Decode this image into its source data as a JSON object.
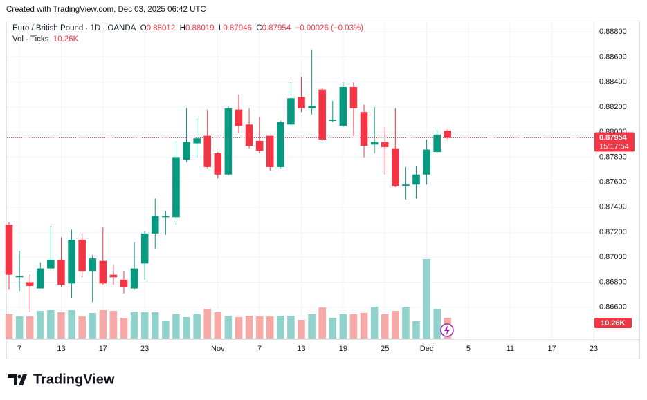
{
  "watermark": "Created with TradingView.com, Dec 03, 2025 06:42 UTC",
  "logo": "TradingView",
  "chart_data": {
    "type": "candlestick",
    "title": "Euro / British Pound · 1D · OANDA",
    "ohlc_letters": [
      "O",
      "H",
      "L",
      "C"
    ],
    "change_label": "−0.00026 (−0.03%)",
    "volume_title": "Vol · Ticks",
    "last_volume_label": "10.26K",
    "countdown": "15:17:54",
    "up_color": "#089981",
    "down_color": "#f23645",
    "volume_up_color": "#92d2cc",
    "volume_down_color": "#f7a9a7",
    "grid": true,
    "xlim": [
      -0.2,
      56
    ],
    "xticks": [
      {
        "value": 1,
        "label": "7"
      },
      {
        "value": 5,
        "label": "13"
      },
      {
        "value": 9,
        "label": "17"
      },
      {
        "value": 13,
        "label": "23"
      },
      {
        "value": 20,
        "label": "Nov"
      },
      {
        "value": 24,
        "label": "7"
      },
      {
        "value": 28,
        "label": "13"
      },
      {
        "value": 32,
        "label": "19"
      },
      {
        "value": 36,
        "label": "25"
      },
      {
        "value": 40,
        "label": "Dec"
      },
      {
        "value": 44,
        "label": "5"
      },
      {
        "value": 48,
        "label": "11"
      },
      {
        "value": 52,
        "label": "17"
      },
      {
        "value": 56,
        "label": "23"
      }
    ],
    "ylim": [
      0.8635,
      0.8889
    ],
    "yticks": [
      {
        "value": 0.866,
        "label": "0.86600"
      },
      {
        "value": 0.868,
        "label": "0.86800"
      },
      {
        "value": 0.87,
        "label": "0.87000"
      },
      {
        "value": 0.872,
        "label": "0.87200"
      },
      {
        "value": 0.874,
        "label": "0.87400"
      },
      {
        "value": 0.876,
        "label": "0.87600"
      },
      {
        "value": 0.878,
        "label": "0.87800"
      },
      {
        "value": 0.88,
        "label": "0.88000"
      },
      {
        "value": 0.882,
        "label": "0.88200"
      },
      {
        "value": 0.884,
        "label": "0.88400"
      },
      {
        "value": 0.886,
        "label": "0.88600"
      },
      {
        "value": 0.888,
        "label": "0.88800"
      }
    ],
    "vlim": [
      0,
      47880
    ],
    "series": {
      "open": [
        0.8726,
        0.8684,
        0.868,
        0.8675,
        0.8691,
        0.8698,
        0.8679,
        0.8714,
        0.8689,
        0.8697,
        0.8686,
        0.8682,
        0.8675,
        0.8695,
        0.8719,
        0.8732,
        0.8732,
        0.8778,
        0.8791,
        0.8797,
        0.8783,
        0.8766,
        0.8818,
        0.8806,
        0.8793,
        0.8797,
        0.8772,
        0.8806,
        0.8828,
        0.8819,
        0.8834,
        0.8809,
        0.8805,
        0.8836,
        0.8816,
        0.879,
        0.8792,
        0.8787,
        0.8757,
        0.8758,
        0.8766,
        0.8784,
        0.88012
      ],
      "high": [
        0.8728,
        0.8705,
        0.8686,
        0.8696,
        0.8725,
        0.8716,
        0.8722,
        0.8719,
        0.8702,
        0.8724,
        0.8694,
        0.8689,
        0.8712,
        0.8721,
        0.8747,
        0.8737,
        0.8793,
        0.8819,
        0.8811,
        0.8818,
        0.8784,
        0.8821,
        0.883,
        0.8819,
        0.8812,
        0.8797,
        0.8809,
        0.884,
        0.8844,
        0.8866,
        0.8835,
        0.8825,
        0.884,
        0.884,
        0.8822,
        0.882,
        0.8804,
        0.8819,
        0.8772,
        0.8773,
        0.8794,
        0.8802,
        0.88019
      ],
      "low": [
        0.8674,
        0.8673,
        0.8656,
        0.8675,
        0.8689,
        0.8676,
        0.8667,
        0.8684,
        0.8664,
        0.8678,
        0.8678,
        0.8671,
        0.8674,
        0.8682,
        0.8707,
        0.8718,
        0.8726,
        0.8776,
        0.878,
        0.8771,
        0.8763,
        0.8765,
        0.8799,
        0.8787,
        0.8783,
        0.8769,
        0.8771,
        0.8804,
        0.8816,
        0.8814,
        0.8793,
        0.8808,
        0.8804,
        0.8797,
        0.878,
        0.8783,
        0.8766,
        0.8756,
        0.8746,
        0.8747,
        0.8758,
        0.8783,
        0.87946
      ],
      "close": [
        0.8686,
        0.8685,
        0.8677,
        0.8691,
        0.8698,
        0.8678,
        0.8714,
        0.8689,
        0.8699,
        0.8679,
        0.8684,
        0.8676,
        0.8691,
        0.8719,
        0.8733,
        0.8733,
        0.878,
        0.8792,
        0.8795,
        0.8772,
        0.8766,
        0.8819,
        0.8805,
        0.8789,
        0.8785,
        0.8772,
        0.8808,
        0.8827,
        0.8819,
        0.8821,
        0.8794,
        0.881,
        0.8836,
        0.8819,
        0.8789,
        0.8792,
        0.8788,
        0.8757,
        0.8758,
        0.8766,
        0.8786,
        0.8798,
        0.87954
      ],
      "volume": [
        11970,
        10940,
        10940,
        13680,
        14020,
        13000,
        14020,
        10940,
        12650,
        14020,
        13680,
        10260,
        13000,
        13000,
        13000,
        8890,
        11970,
        10600,
        11970,
        14710,
        13000,
        11290,
        10600,
        11290,
        10940,
        10940,
        11290,
        11290,
        9230,
        11970,
        15390,
        10260,
        11970,
        11970,
        12650,
        15730,
        11970,
        13680,
        15390,
        8550,
        39330,
        14710,
        10260
      ]
    }
  }
}
